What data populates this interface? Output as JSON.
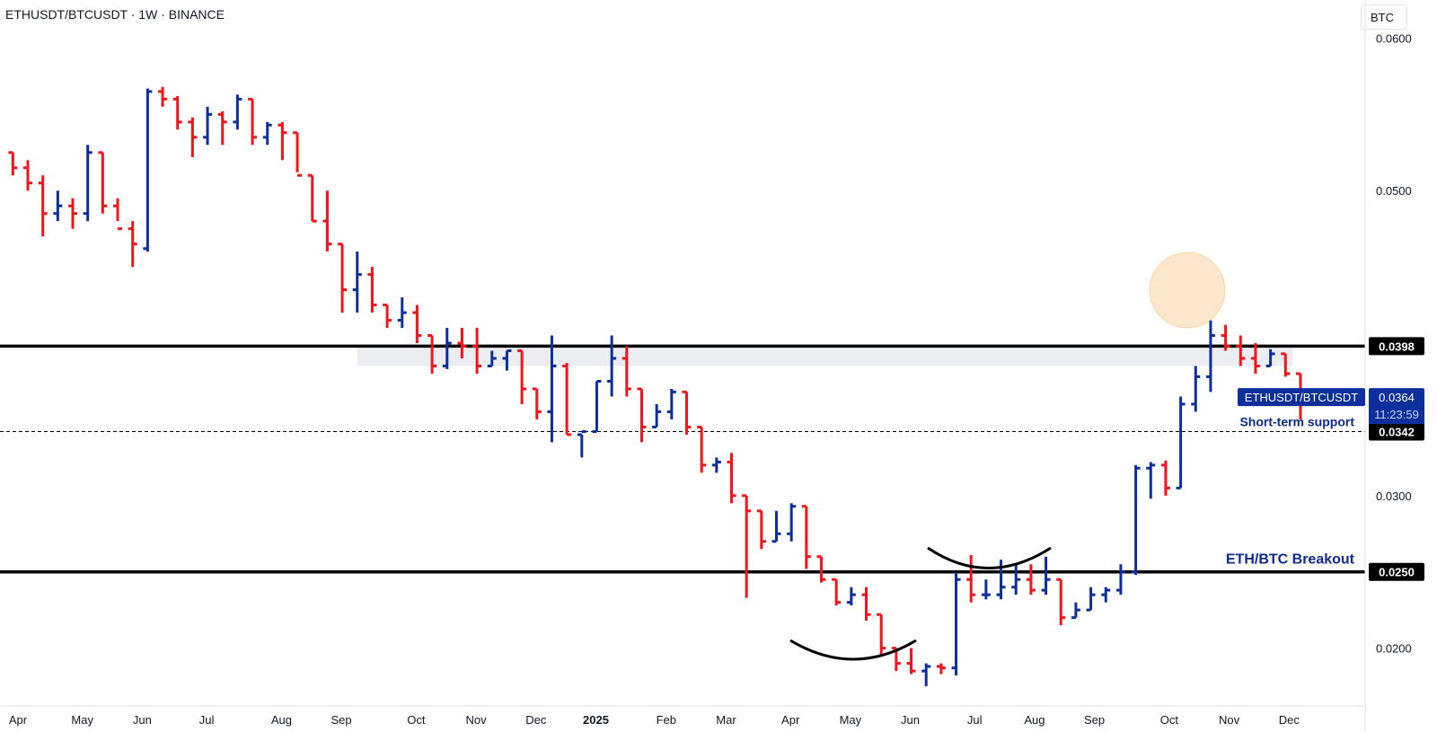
{
  "header": {
    "symbol_line": "ETHUSDT/BTCUSDT · 1W · BINANCE",
    "unit_button": "BTC"
  },
  "colors": {
    "up": "#0c2f9c",
    "down": "#f2141a",
    "level_line": "#000000",
    "zone_fill": "#ebedf1",
    "label_blue": "#0d2a8c",
    "highlight": "#fbd3a3"
  },
  "chart_data": {
    "type": "ohlc",
    "title": "ETHUSDT/BTCUSDT · 1W · BINANCE",
    "y_unit": "BTC",
    "ylim": [
      0.0145,
      0.0625
    ],
    "y_ticks": [
      {
        "value": 0.06,
        "label": "0.0600"
      },
      {
        "value": 0.05,
        "label": "0.0500"
      },
      {
        "value": 0.03,
        "label": "0.0300"
      },
      {
        "value": 0.02,
        "label": "0.0200"
      }
    ],
    "x_ticks": [
      {
        "week": 0,
        "label": "Apr"
      },
      {
        "week": 4.3,
        "label": "May"
      },
      {
        "week": 8.3,
        "label": "Jun"
      },
      {
        "week": 12.6,
        "label": "Jul"
      },
      {
        "week": 17.6,
        "label": "Aug"
      },
      {
        "week": 21.6,
        "label": "Sep"
      },
      {
        "week": 26.6,
        "label": "Oct"
      },
      {
        "week": 30.6,
        "label": "Nov"
      },
      {
        "week": 34.6,
        "label": "Dec"
      },
      {
        "week": 38.6,
        "label": "2025"
      },
      {
        "week": 43.3,
        "label": "Feb"
      },
      {
        "week": 47.3,
        "label": "Mar"
      },
      {
        "week": 51.6,
        "label": "Apr"
      },
      {
        "week": 55.6,
        "label": "May"
      },
      {
        "week": 59.6,
        "label": "Jun"
      },
      {
        "week": 63.9,
        "label": "Jul"
      },
      {
        "week": 67.9,
        "label": "Aug"
      },
      {
        "week": 71.9,
        "label": "Sep"
      },
      {
        "week": 76.9,
        "label": "Oct"
      },
      {
        "week": 80.9,
        "label": "Nov"
      },
      {
        "week": 84.9,
        "label": "Dec"
      }
    ],
    "series": [
      {
        "values": [
          [
            0.0525,
            0.0525,
            0.051,
            0.0515
          ],
          [
            0.0515,
            0.052,
            0.05,
            0.0505
          ],
          [
            0.0505,
            0.051,
            0.047,
            0.0485
          ],
          [
            0.0485,
            0.05,
            0.048,
            0.049
          ],
          [
            0.049,
            0.0495,
            0.0475,
            0.0485
          ],
          [
            0.0485,
            0.053,
            0.048,
            0.0525
          ],
          [
            0.0525,
            0.0525,
            0.0485,
            0.049
          ],
          [
            0.049,
            0.0495,
            0.048,
            0.0475
          ],
          [
            0.0475,
            0.048,
            0.045,
            0.0465
          ],
          [
            0.0462,
            0.0567,
            0.046,
            0.0565
          ],
          [
            0.0565,
            0.0568,
            0.0555,
            0.056
          ],
          [
            0.056,
            0.0562,
            0.054,
            0.0545
          ],
          [
            0.0545,
            0.0548,
            0.0522,
            0.0535
          ],
          [
            0.0535,
            0.0555,
            0.053,
            0.055
          ],
          [
            0.055,
            0.0552,
            0.053,
            0.0545
          ],
          [
            0.0545,
            0.0563,
            0.054,
            0.056
          ],
          [
            0.056,
            0.056,
            0.053,
            0.0535
          ],
          [
            0.0535,
            0.0545,
            0.053,
            0.0543
          ],
          [
            0.0543,
            0.0545,
            0.052,
            0.0538
          ],
          [
            0.0538,
            0.0538,
            0.0512,
            0.051
          ],
          [
            0.051,
            0.051,
            0.048,
            0.048
          ],
          [
            0.048,
            0.05,
            0.046,
            0.0465
          ],
          [
            0.0465,
            0.0465,
            0.042,
            0.0435
          ],
          [
            0.0435,
            0.046,
            0.042,
            0.0445
          ],
          [
            0.0445,
            0.045,
            0.042,
            0.0425
          ],
          [
            0.0425,
            0.0425,
            0.041,
            0.0415
          ],
          [
            0.0415,
            0.043,
            0.041,
            0.042
          ],
          [
            0.042,
            0.0425,
            0.04,
            0.0405
          ],
          [
            0.0405,
            0.0405,
            0.038,
            0.0385
          ],
          [
            0.0385,
            0.041,
            0.0383,
            0.04
          ],
          [
            0.04,
            0.041,
            0.039,
            0.0398
          ],
          [
            0.0398,
            0.041,
            0.038,
            0.0385
          ],
          [
            0.0385,
            0.0395,
            0.0385,
            0.039
          ],
          [
            0.039,
            0.0395,
            0.0382,
            0.0395
          ],
          [
            0.0395,
            0.0395,
            0.036,
            0.037
          ],
          [
            0.037,
            0.037,
            0.035,
            0.0355
          ],
          [
            0.0355,
            0.0405,
            0.0335,
            0.0385
          ],
          [
            0.0385,
            0.0387,
            0.034,
            0.034
          ],
          [
            0.034,
            0.034,
            0.0325,
            0.0342
          ],
          [
            0.0342,
            0.0375,
            0.0342,
            0.0375
          ],
          [
            0.0375,
            0.0405,
            0.0365,
            0.039
          ],
          [
            0.039,
            0.0398,
            0.0365,
            0.037
          ],
          [
            0.037,
            0.037,
            0.0335,
            0.0345
          ],
          [
            0.0345,
            0.036,
            0.0345,
            0.0355
          ],
          [
            0.0355,
            0.037,
            0.035,
            0.0368
          ],
          [
            0.0368,
            0.0368,
            0.034,
            0.0345
          ],
          [
            0.0345,
            0.0345,
            0.0315,
            0.032
          ],
          [
            0.032,
            0.0325,
            0.0315,
            0.0322
          ],
          [
            0.0322,
            0.0328,
            0.0295,
            0.03
          ],
          [
            0.03,
            0.03,
            0.0233,
            0.029
          ],
          [
            0.029,
            0.029,
            0.0265,
            0.027
          ],
          [
            0.027,
            0.029,
            0.027,
            0.0275
          ],
          [
            0.0275,
            0.0295,
            0.027,
            0.0293
          ],
          [
            0.0293,
            0.0293,
            0.0252,
            0.026
          ],
          [
            0.026,
            0.026,
            0.0243,
            0.0245
          ],
          [
            0.0245,
            0.0245,
            0.0228,
            0.023
          ],
          [
            0.023,
            0.024,
            0.0228,
            0.0235
          ],
          [
            0.0235,
            0.024,
            0.0218,
            0.0222
          ],
          [
            0.0222,
            0.0222,
            0.0195,
            0.02
          ],
          [
            0.02,
            0.02,
            0.0185,
            0.019
          ],
          [
            0.019,
            0.02,
            0.0183,
            0.0185
          ],
          [
            0.0185,
            0.019,
            0.0175,
            0.0188
          ],
          [
            0.0188,
            0.019,
            0.0183,
            0.0187
          ],
          [
            0.0187,
            0.025,
            0.0182,
            0.0245
          ],
          [
            0.0245,
            0.0261,
            0.023,
            0.0235
          ],
          [
            0.0235,
            0.0245,
            0.0232,
            0.0235
          ],
          [
            0.0235,
            0.0258,
            0.0232,
            0.024
          ],
          [
            0.024,
            0.0255,
            0.0235,
            0.0245
          ],
          [
            0.0245,
            0.0255,
            0.0235,
            0.0238
          ],
          [
            0.0238,
            0.026,
            0.0235,
            0.0245
          ],
          [
            0.0245,
            0.0245,
            0.0215,
            0.022
          ],
          [
            0.022,
            0.023,
            0.022,
            0.0225
          ],
          [
            0.0225,
            0.024,
            0.0225,
            0.0235
          ],
          [
            0.0235,
            0.024,
            0.023,
            0.0238
          ],
          [
            0.0238,
            0.0255,
            0.0235,
            0.025
          ],
          [
            0.025,
            0.032,
            0.0248,
            0.0318
          ],
          [
            0.0318,
            0.0322,
            0.0298,
            0.032
          ],
          [
            0.032,
            0.0323,
            0.03,
            0.0305
          ],
          [
            0.0305,
            0.0365,
            0.0305,
            0.036
          ],
          [
            0.036,
            0.0385,
            0.0355,
            0.0378
          ],
          [
            0.0378,
            0.0415,
            0.0368,
            0.0405
          ],
          [
            0.0405,
            0.0412,
            0.0395,
            0.0398
          ],
          [
            0.0398,
            0.0405,
            0.0385,
            0.039
          ],
          [
            0.039,
            0.04,
            0.038,
            0.0385
          ],
          [
            0.0385,
            0.0396,
            0.0385,
            0.0393
          ],
          [
            0.0393,
            0.0393,
            0.0378,
            0.038
          ],
          [
            0.038,
            0.038,
            0.035,
            0.0364
          ]
        ]
      }
    ],
    "levels": [
      {
        "value": 0.0398,
        "label": "0.0398",
        "style": "solid"
      },
      {
        "value": 0.0342,
        "label": "0.0342",
        "style": "dashed",
        "annotation": "Short-term support"
      },
      {
        "value": 0.025,
        "label": "0.0250",
        "style": "solid",
        "annotation": "ETH/BTC Breakout"
      }
    ],
    "zone": {
      "from_week": 23.5,
      "to_week": 86,
      "top": 0.0398,
      "bottom": 0.0385
    },
    "last_price": {
      "symbol": "ETHUSDT/BTCUSDT",
      "value": "0.0364",
      "countdown": "11:23:59"
    },
    "grid": false
  }
}
